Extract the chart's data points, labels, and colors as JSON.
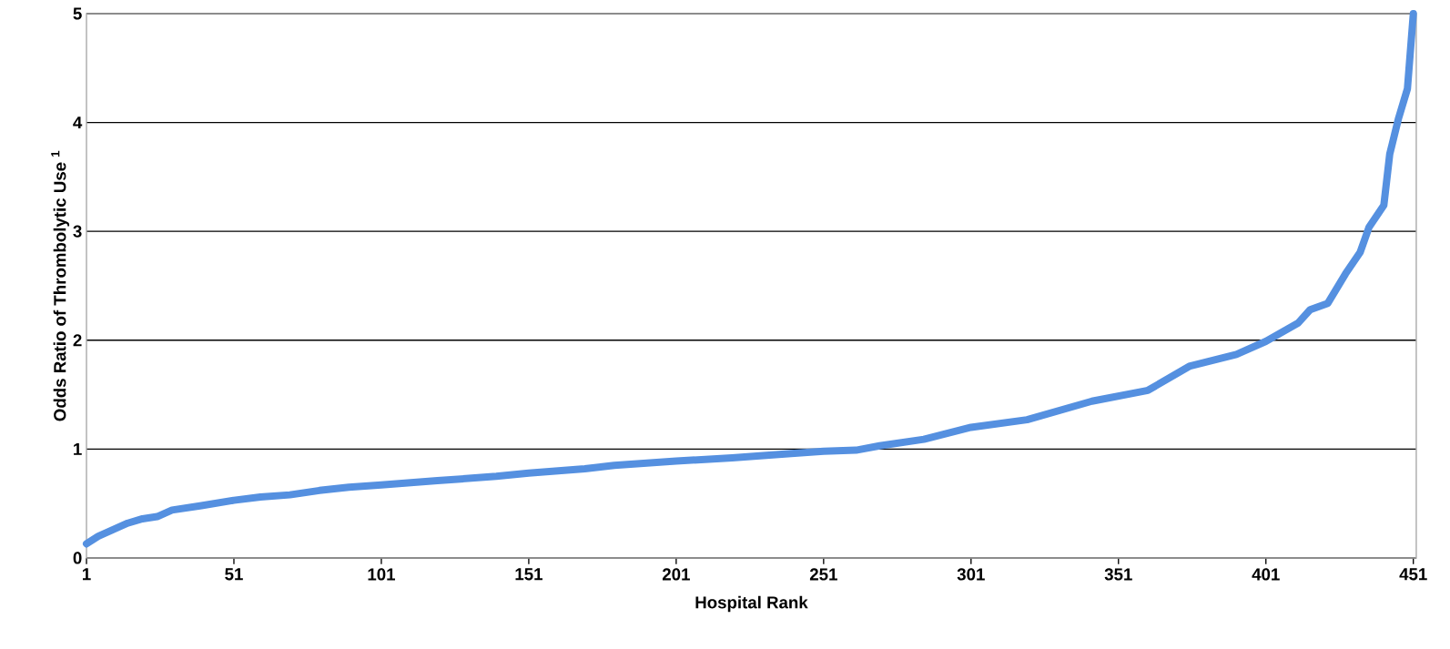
{
  "chart_data": {
    "type": "line",
    "xlabel": "Hospital Rank",
    "ylabel": "Odds Ratio of Thrombolytic Use $^{1}$",
    "x": [
      1,
      5,
      10,
      15,
      20,
      25,
      30,
      40,
      51,
      60,
      70,
      80,
      90,
      101,
      120,
      140,
      151,
      170,
      180,
      201,
      220,
      240,
      251,
      262,
      270,
      285,
      301,
      320,
      342,
      361,
      375,
      391,
      401,
      412,
      416,
      422,
      428,
      433,
      436,
      441,
      443,
      446,
      449,
      451
    ],
    "series": [
      {
        "color": "#5590e0",
        "values": [
          0.13,
          0.2,
          0.26,
          0.32,
          0.36,
          0.38,
          0.44,
          0.48,
          0.53,
          0.56,
          0.58,
          0.62,
          0.65,
          0.67,
          0.71,
          0.75,
          0.78,
          0.82,
          0.85,
          0.89,
          0.92,
          0.96,
          0.98,
          0.99,
          1.03,
          1.09,
          1.2,
          1.27,
          1.44,
          1.54,
          1.76,
          1.87,
          1.99,
          2.16,
          2.28,
          2.34,
          2.61,
          2.81,
          3.04,
          3.24,
          3.71,
          4.04,
          4.31,
          5
        ]
      }
    ],
    "xlim": [
      1,
      452
    ],
    "ylim": [
      0,
      5
    ],
    "xticks": [
      1,
      51,
      101,
      151,
      201,
      251,
      301,
      351,
      401,
      451
    ],
    "yticks": [
      0,
      1,
      2,
      3,
      4,
      5
    ],
    "grid": "y",
    "marker": "none",
    "line_style": "solid"
  }
}
